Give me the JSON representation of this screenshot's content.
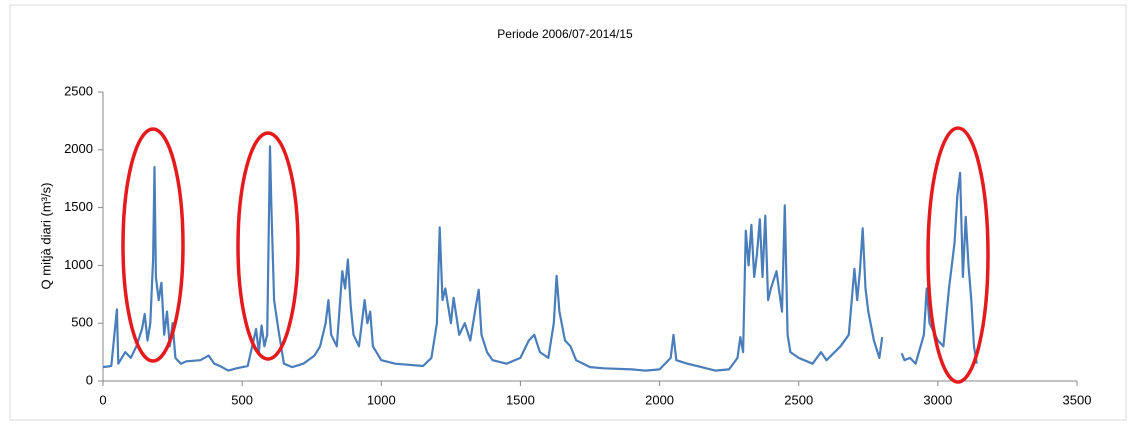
{
  "chart_data": {
    "type": "line",
    "title": "Periode 2006/07-2014/15",
    "y_label": "Q mitjà diari (m³/s)",
    "x": [
      0,
      30,
      50,
      55,
      80,
      100,
      120,
      140,
      150,
      160,
      170,
      180,
      185,
      190,
      200,
      210,
      220,
      230,
      240,
      250,
      260,
      280,
      300,
      350,
      380,
      400,
      420,
      450,
      480,
      520,
      550,
      560,
      570,
      580,
      590,
      600,
      605,
      615,
      630,
      650,
      680,
      720,
      760,
      780,
      800,
      810,
      820,
      840,
      860,
      870,
      880,
      890,
      900,
      920,
      940,
      950,
      960,
      970,
      1000,
      1050,
      1100,
      1150,
      1180,
      1200,
      1210,
      1220,
      1230,
      1250,
      1260,
      1280,
      1300,
      1320,
      1340,
      1350,
      1360,
      1380,
      1400,
      1450,
      1500,
      1530,
      1550,
      1570,
      1600,
      1620,
      1630,
      1640,
      1660,
      1680,
      1700,
      1750,
      1800,
      1900,
      1950,
      2000,
      2040,
      2050,
      2060,
      2100,
      2150,
      2200,
      2250,
      2280,
      2290,
      2300,
      2310,
      2320,
      2330,
      2340,
      2350,
      2360,
      2370,
      2380,
      2390,
      2400,
      2420,
      2440,
      2450,
      2460,
      2470,
      2500,
      2550,
      2580,
      2600,
      2650,
      2680,
      2700,
      2710,
      2720,
      2730,
      2740,
      2750,
      2770,
      2790,
      2800,
      2820,
      2870,
      2880,
      2900,
      2920,
      2950,
      2960,
      2970,
      3000,
      3020,
      3040,
      3060,
      3070,
      3080,
      3090,
      3100,
      3110,
      3120,
      3130,
      3140
    ],
    "values": [
      120,
      130,
      620,
      150,
      250,
      200,
      300,
      450,
      580,
      350,
      500,
      1050,
      1850,
      900,
      700,
      850,
      400,
      600,
      300,
      500,
      200,
      150,
      170,
      180,
      220,
      150,
      130,
      90,
      110,
      130,
      450,
      250,
      480,
      300,
      400,
      2030,
      1500,
      700,
      450,
      150,
      120,
      150,
      220,
      300,
      500,
      700,
      400,
      300,
      950,
      800,
      1050,
      650,
      400,
      300,
      700,
      500,
      600,
      300,
      180,
      150,
      140,
      130,
      200,
      500,
      1330,
      700,
      800,
      500,
      720,
      400,
      500,
      350,
      650,
      790,
      400,
      250,
      180,
      150,
      200,
      350,
      400,
      250,
      200,
      500,
      910,
      600,
      350,
      300,
      180,
      120,
      110,
      100,
      90,
      100,
      200,
      400,
      180,
      150,
      120,
      90,
      100,
      200,
      380,
      250,
      1300,
      1000,
      1350,
      900,
      1100,
      1400,
      900,
      1430,
      700,
      800,
      950,
      600,
      1520,
      400,
      250,
      200,
      150,
      250,
      180,
      300,
      400,
      970,
      700,
      950,
      1320,
      800,
      600,
      350,
      200,
      380,
      null,
      240,
      180,
      200,
      150,
      400,
      800,
      500,
      350,
      300,
      800,
      1200,
      1600,
      1800,
      900,
      1420,
      1000,
      700,
      300,
      150
    ],
    "color": "#4a7ebb",
    "xlim": [
      0,
      3500
    ],
    "xticks": [
      0,
      500,
      1000,
      1500,
      2000,
      2500,
      3000,
      3500
    ],
    "ylim": [
      0,
      2500
    ],
    "yticks": [
      0,
      500,
      1000,
      1500,
      2000,
      2500
    ]
  }
}
